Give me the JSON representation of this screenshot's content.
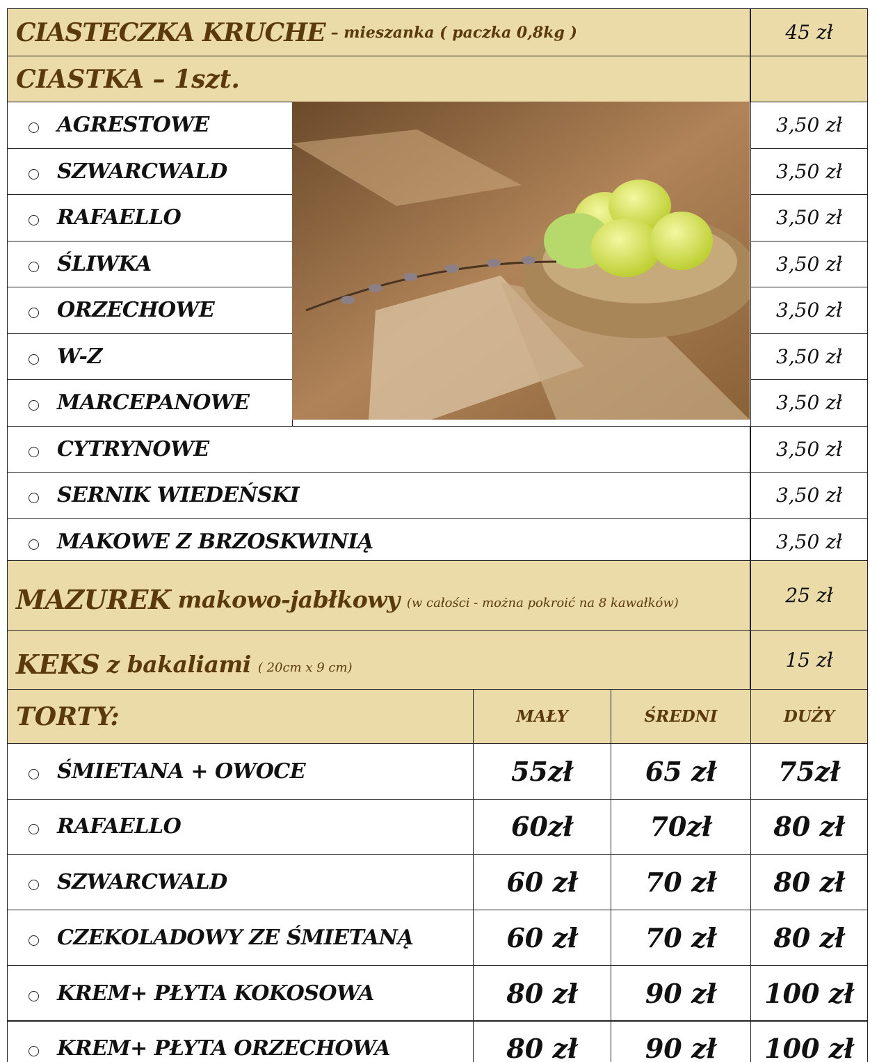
{
  "ciasteczka": {
    "title": "CIASTECZKA KRUCHE",
    "subtitle": "– mieszanka ( paczka 0,8kg )",
    "price": "45 zł"
  },
  "ciastka": {
    "title": "CIASTKA – 1szt.",
    "items": [
      {
        "name": "AGRESTOWE",
        "price": "3,50 zł"
      },
      {
        "name": "SZWARCWALD",
        "price": "3,50 zł"
      },
      {
        "name": "RAFAELLO",
        "price": "3,50 zł"
      },
      {
        "name": "ŚLIWKA",
        "price": "3,50 zł"
      },
      {
        "name": "ORZECHOWE",
        "price": "3,50 zł"
      },
      {
        "name": "W-Z",
        "price": "3,50 zł"
      },
      {
        "name": "MARCEPANOWE",
        "price": "3,50 zł"
      },
      {
        "name": "CYTRYNOWE",
        "price": "3,50 zł"
      },
      {
        "name": "SERNIK WIEDEŃSKI",
        "price": "3,50 zł"
      },
      {
        "name": "MAKOWE Z BRZOSKWINIĄ",
        "price": "3,50 zł"
      }
    ]
  },
  "mazurek": {
    "title": "MAZUREK",
    "subtitle": "makowo-jabłkowy",
    "note": "(w całości - można pokroić na 8 kawałków)",
    "price": "25 zł"
  },
  "keks": {
    "title": "KEKS",
    "subtitle": "z bakaliami",
    "note": "( 20cm x 9 cm)",
    "price": "15 zł"
  },
  "torty": {
    "title": "TORTY:",
    "columns": [
      "MAŁY",
      "ŚREDNI",
      "DUŻY"
    ],
    "items": [
      {
        "name": "ŚMIETANA + OWOCE",
        "prices": [
          "55zł",
          "65 zł",
          "75zł"
        ]
      },
      {
        "name": "RAFAELLO",
        "prices": [
          "60zł",
          "70zł",
          "80 zł"
        ]
      },
      {
        "name": "SZWARCWALD",
        "prices": [
          "60 zł",
          "70 zł",
          "80 zł"
        ]
      },
      {
        "name": "CZEKOLADOWY ZE ŚMIETANĄ",
        "prices": [
          "60 zł",
          "70 zł",
          "80 zł"
        ]
      },
      {
        "name": "KREM+ PŁYTA KOKOSOWA",
        "prices": [
          "80 zł",
          "90 zł",
          "100 zł"
        ]
      },
      {
        "name": "KREM+ PŁYTA ORZECHOWA",
        "prices": [
          "80 zł",
          "90 zł",
          "100 zł"
        ]
      }
    ]
  }
}
